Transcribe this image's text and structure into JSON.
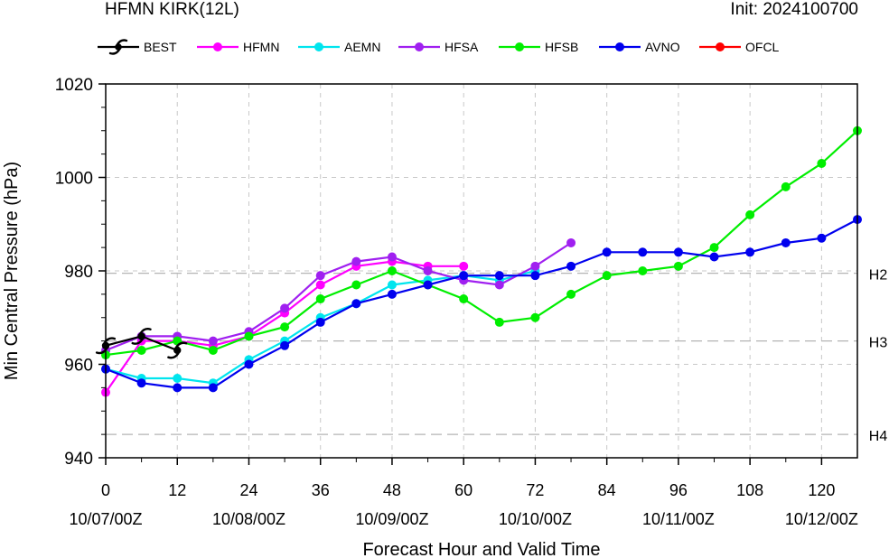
{
  "header": {
    "title_left": "HFMN KIRK(12L)",
    "title_right": "Init: 2024100700"
  },
  "chart_data": {
    "type": "line",
    "xlabel": "Forecast Hour and Valid Time",
    "ylabel": "Min Central Pressure (hPa)",
    "xlim": [
      0,
      126
    ],
    "ylim": [
      940,
      1020
    ],
    "x_ticks": [
      {
        "value": 0,
        "hour": "0",
        "date": "10/07/00Z"
      },
      {
        "value": 12,
        "hour": "12",
        "date": ""
      },
      {
        "value": 24,
        "hour": "24",
        "date": "10/08/00Z"
      },
      {
        "value": 36,
        "hour": "36",
        "date": ""
      },
      {
        "value": 48,
        "hour": "48",
        "date": "10/09/00Z"
      },
      {
        "value": 60,
        "hour": "60",
        "date": ""
      },
      {
        "value": 72,
        "hour": "72",
        "date": "10/10/00Z"
      },
      {
        "value": 84,
        "hour": "84",
        "date": ""
      },
      {
        "value": 96,
        "hour": "96",
        "date": "10/11/00Z"
      },
      {
        "value": 108,
        "hour": "108",
        "date": ""
      },
      {
        "value": 120,
        "hour": "120",
        "date": "10/12/00Z"
      }
    ],
    "y_ticks": [
      940,
      960,
      980,
      1000,
      1020
    ],
    "grid": true,
    "reference_lines": [
      {
        "label": "H2",
        "value": 979.5
      },
      {
        "label": "H3",
        "value": 965
      },
      {
        "label": "H4",
        "value": 945
      }
    ],
    "legend_position": "top",
    "series": [
      {
        "name": "BEST",
        "color": "#000000",
        "marker": "hurricane",
        "x": [
          0,
          6,
          12
        ],
        "y": [
          964,
          966,
          963
        ]
      },
      {
        "name": "HFMN",
        "color": "#ff00ff",
        "marker": "dot",
        "x": [
          0,
          6,
          12,
          18,
          24,
          30,
          36,
          42,
          48,
          54,
          60
        ],
        "y": [
          954,
          965,
          965,
          964,
          966,
          971,
          977,
          981,
          982,
          981,
          981
        ]
      },
      {
        "name": "AEMN",
        "color": "#00e5ee",
        "marker": "dot",
        "x": [
          0,
          6,
          12,
          18,
          24,
          30,
          36,
          42,
          48,
          54,
          60,
          66,
          72
        ],
        "y": [
          959,
          957,
          957,
          956,
          961,
          965,
          970,
          973,
          977,
          978,
          979,
          978,
          980
        ]
      },
      {
        "name": "HFSA",
        "color": "#a020f0",
        "marker": "dot",
        "x": [
          0,
          6,
          12,
          18,
          24,
          30,
          36,
          42,
          48,
          54,
          60,
          66,
          72,
          78
        ],
        "y": [
          963,
          966,
          966,
          965,
          967,
          972,
          979,
          982,
          983,
          980,
          978,
          977,
          981,
          986
        ]
      },
      {
        "name": "HFSB",
        "color": "#00ee00",
        "marker": "dot",
        "x": [
          0,
          6,
          12,
          18,
          24,
          30,
          36,
          42,
          48,
          54,
          60,
          66,
          72,
          78,
          84,
          90,
          96,
          102,
          108,
          114,
          120,
          126
        ],
        "y": [
          962,
          963,
          965,
          963,
          966,
          968,
          974,
          977,
          980,
          977,
          974,
          969,
          970,
          975,
          979,
          980,
          981,
          985,
          992,
          998,
          1003,
          1010
        ]
      },
      {
        "name": "AVNO",
        "color": "#0000ee",
        "marker": "dot",
        "x": [
          0,
          6,
          12,
          18,
          24,
          30,
          36,
          42,
          48,
          54,
          60,
          66,
          72,
          78,
          84,
          90,
          96,
          102,
          108,
          114,
          120,
          126
        ],
        "y": [
          959,
          956,
          955,
          955,
          960,
          964,
          969,
          973,
          975,
          977,
          979,
          979,
          979,
          981,
          984,
          984,
          984,
          983,
          984,
          986,
          987,
          991
        ]
      },
      {
        "name": "OFCL",
        "color": "#ff0000",
        "marker": "dot",
        "x": [],
        "y": []
      }
    ]
  }
}
